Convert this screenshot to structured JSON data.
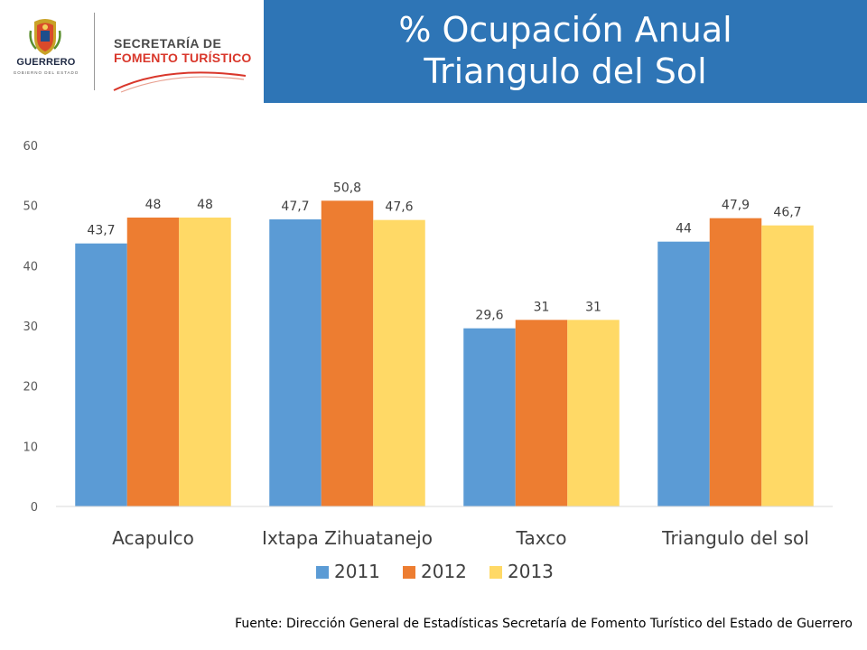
{
  "logo": {
    "state_name": "GUERRERO",
    "state_subtitle": "GOBIERNO DEL ESTADO",
    "secretaria_line1": "SECRETARÍA DE",
    "secretaria_line2": "FOMENTO TURÍSTICO"
  },
  "header": {
    "title_line1": "% Ocupación Anual",
    "title_line2": "Triangulo del Sol"
  },
  "colors": {
    "title_bg": "#2e75b6",
    "series_2011": "#5b9bd5",
    "series_2012": "#ed7d31",
    "series_2013": "#ffd966"
  },
  "chart_data": {
    "type": "bar",
    "categories": [
      "Acapulco",
      "Ixtapa Zihuatanejo",
      "Taxco",
      "Triangulo del sol"
    ],
    "series": [
      {
        "name": "2011",
        "values": [
          43.7,
          47.7,
          29.6,
          44
        ],
        "labels": [
          "43,7",
          "47,7",
          "29,6",
          "44"
        ]
      },
      {
        "name": "2012",
        "values": [
          48,
          50.8,
          31,
          47.9
        ],
        "labels": [
          "48",
          "50,8",
          "31",
          "47,9"
        ]
      },
      {
        "name": "2013",
        "values": [
          48,
          47.6,
          31,
          46.7
        ],
        "labels": [
          "48",
          "47,6",
          "31",
          "46,7"
        ]
      }
    ],
    "ylim": [
      0,
      60
    ],
    "yticks": [
      "0",
      "10",
      "20",
      "30",
      "40",
      "50",
      "60"
    ],
    "legend_position": "bottom",
    "grid": false
  },
  "footer": {
    "source": "Fuente: Dirección General de Estadísticas Secretaría de Fomento Turístico del Estado de Guerrero"
  }
}
